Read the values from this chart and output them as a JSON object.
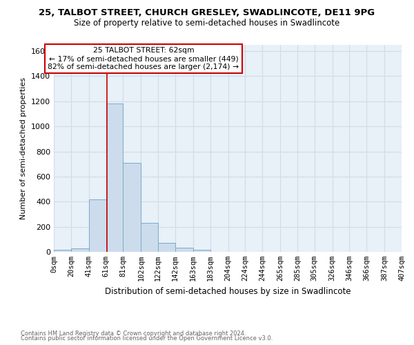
{
  "title1": "25, TALBOT STREET, CHURCH GRESLEY, SWADLINCOTE, DE11 9PG",
  "title2": "Size of property relative to semi-detached houses in Swadlincote",
  "xlabel": "Distribution of semi-detached houses by size in Swadlincote",
  "ylabel": "Number of semi-detached properties",
  "footer1": "Contains HM Land Registry data © Crown copyright and database right 2024.",
  "footer2": "Contains public sector information licensed under the Open Government Licence v3.0.",
  "annotation_title": "25 TALBOT STREET: 62sqm",
  "annotation_line2": "← 17% of semi-detached houses are smaller (449)",
  "annotation_line3": "82% of semi-detached houses are larger (2,174) →",
  "property_size": 62,
  "bar_color": "#ccdcec",
  "bar_edge_color": "#7aaaca",
  "red_line_color": "#cc0000",
  "grid_color": "#d0dce8",
  "bg_color": "#e8f0f8",
  "bin_edges": [
    0,
    20,
    41,
    61,
    81,
    102,
    122,
    142,
    163,
    183,
    204,
    224,
    244,
    265,
    285,
    305,
    326,
    346,
    366,
    387,
    407
  ],
  "bar_heights": [
    15,
    30,
    420,
    1180,
    710,
    230,
    70,
    35,
    15,
    0,
    0,
    0,
    0,
    0,
    0,
    0,
    0,
    0,
    0,
    0
  ],
  "ylim": [
    0,
    1650
  ],
  "yticks": [
    0,
    200,
    400,
    600,
    800,
    1000,
    1200,
    1400,
    1600
  ],
  "xtick_labels": [
    "0sqm",
    "20sqm",
    "41sqm",
    "61sqm",
    "81sqm",
    "102sqm",
    "122sqm",
    "142sqm",
    "163sqm",
    "183sqm",
    "204sqm",
    "224sqm",
    "244sqm",
    "265sqm",
    "285sqm",
    "305sqm",
    "326sqm",
    "346sqm",
    "366sqm",
    "387sqm",
    "407sqm"
  ],
  "annotation_box_color": "white",
  "annotation_box_edge": "#cc0000",
  "title_fontsize": 9.5,
  "subtitle_fontsize": 8.5,
  "xlabel_fontsize": 8.5,
  "ylabel_fontsize": 8.0,
  "tick_fontsize": 7.5,
  "footer_fontsize": 6.0,
  "ann_fontsize": 7.8
}
